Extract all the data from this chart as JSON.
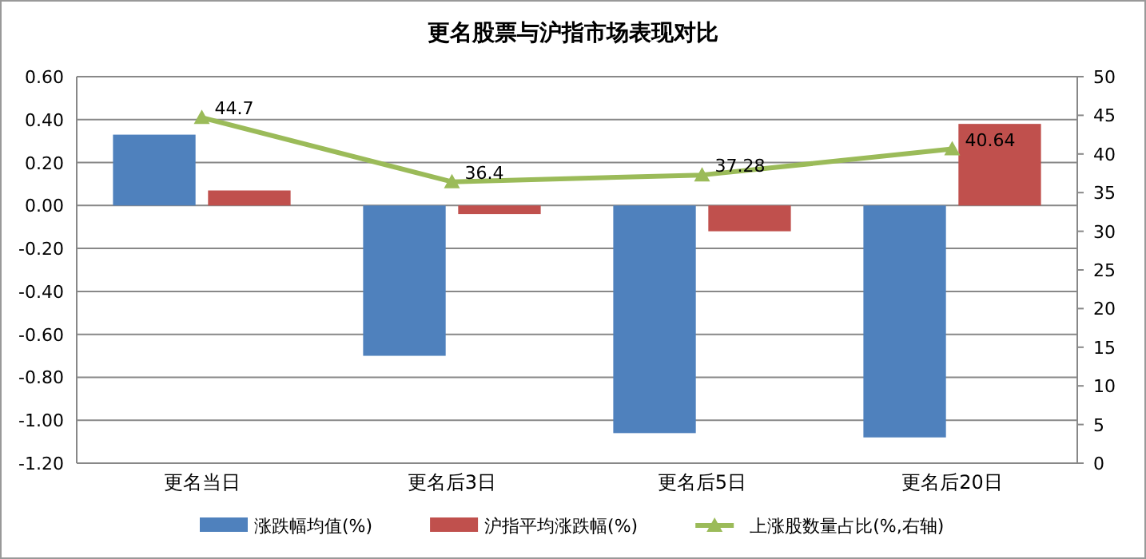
{
  "chart_data": {
    "type": "bar",
    "title": "更名股票与沪指市场表现对比",
    "categories": [
      "更名当日",
      "更名后3日",
      "更名后5日",
      "更名后20日"
    ],
    "series": [
      {
        "name": "涨跌幅均值(%)",
        "color": "#4f81bd",
        "values": [
          0.33,
          -0.7,
          -1.06,
          -1.08
        ]
      },
      {
        "name": "沪指平均涨跌幅(%)",
        "color": "#c0504d",
        "values": [
          0.07,
          -0.04,
          -0.12,
          0.38
        ]
      },
      {
        "name": "上涨股数量占比(%,右轴)",
        "type": "line",
        "axis": "y2",
        "color": "#9bbb59",
        "marker": "triangle",
        "values": [
          44.7,
          36.4,
          37.28,
          40.64
        ],
        "value_labels": [
          "44.7",
          "36.4",
          "37.28",
          "40.64"
        ]
      }
    ],
    "ylim": [
      -1.2,
      0.6
    ],
    "yticks": [
      {
        "value": 0.6,
        "label": "0.60"
      },
      {
        "value": 0.4,
        "label": "0.40"
      },
      {
        "value": 0.2,
        "label": "0.20"
      },
      {
        "value": 0,
        "label": "0.00"
      },
      {
        "value": -0.2,
        "label": "-0.20"
      },
      {
        "value": -0.4,
        "label": "-0.40"
      },
      {
        "value": -0.6,
        "label": "-0.60"
      },
      {
        "value": -0.8,
        "label": "-0.80"
      },
      {
        "value": -1.0,
        "label": "-1.00"
      },
      {
        "value": -1.2,
        "label": "-1.20"
      }
    ],
    "y2lim": [
      0,
      50
    ],
    "y2ticks": [
      0,
      5,
      10,
      15,
      20,
      25,
      30,
      35,
      40,
      45,
      50
    ],
    "grid": "y",
    "legend": "bottom"
  }
}
